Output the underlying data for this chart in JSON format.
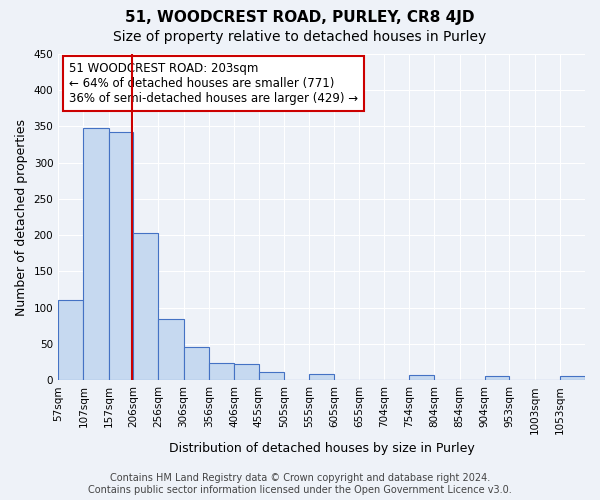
{
  "title": "51, WOODCREST ROAD, PURLEY, CR8 4JD",
  "subtitle": "Size of property relative to detached houses in Purley",
  "xlabel": "Distribution of detached houses by size in Purley",
  "ylabel": "Number of detached properties",
  "bar_labels": [
    "57sqm",
    "107sqm",
    "157sqm",
    "206sqm",
    "256sqm",
    "306sqm",
    "356sqm",
    "406sqm",
    "455sqm",
    "505sqm",
    "555sqm",
    "605sqm",
    "655sqm",
    "704sqm",
    "754sqm",
    "804sqm",
    "854sqm",
    "904sqm",
    "953sqm",
    "1003sqm",
    "1053sqm"
  ],
  "bar_heights": [
    110,
    348,
    343,
    203,
    84,
    46,
    24,
    22,
    11,
    0,
    9,
    0,
    0,
    0,
    7,
    0,
    0,
    6,
    0,
    0,
    6
  ],
  "bar_edges": [
    57,
    107,
    157,
    206,
    256,
    306,
    356,
    406,
    455,
    505,
    555,
    605,
    655,
    704,
    754,
    804,
    854,
    904,
    953,
    1003,
    1053
  ],
  "bar_widths": [
    50,
    50,
    49,
    50,
    50,
    50,
    50,
    49,
    50,
    50,
    50,
    50,
    49,
    50,
    50,
    50,
    50,
    49,
    50,
    50,
    50
  ],
  "bar_color": "#c6d9f0",
  "bar_edge_color": "#4472c4",
  "vline_x": 203,
  "vline_color": "#cc0000",
  "annotation_title": "51 WOODCREST ROAD: 203sqm",
  "annotation_line1": "← 64% of detached houses are smaller (771)",
  "annotation_line2": "36% of semi-detached houses are larger (429) →",
  "annotation_box_color": "#cc0000",
  "ylim": [
    0,
    450
  ],
  "yticks": [
    0,
    50,
    100,
    150,
    200,
    250,
    300,
    350,
    400,
    450
  ],
  "footer_line1": "Contains HM Land Registry data © Crown copyright and database right 2024.",
  "footer_line2": "Contains public sector information licensed under the Open Government Licence v3.0.",
  "bg_color": "#eef2f8",
  "grid_color": "#ffffff",
  "title_fontsize": 11,
  "subtitle_fontsize": 10,
  "axis_label_fontsize": 9,
  "tick_fontsize": 7.5,
  "annotation_fontsize": 8.5,
  "footer_fontsize": 7
}
